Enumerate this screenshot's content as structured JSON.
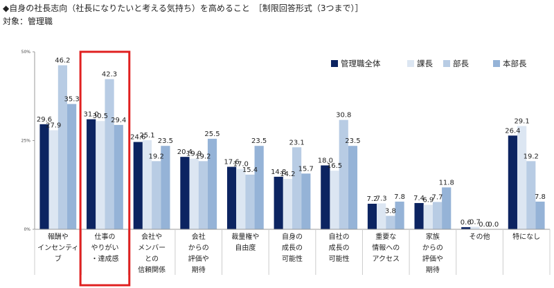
{
  "title": "◆自身の社長志向（社長になりたいと考える気持ち）を高めること　［制限回答形式（3つまで）］",
  "subtitle": "対象：管理職",
  "colors": {
    "series": [
      "#0c2461",
      "#dce6f2",
      "#b8cce4",
      "#95b3d7"
    ],
    "highlight": "#e02020",
    "axis": "#999999",
    "grid": "#cccccc"
  },
  "chart_data": {
    "type": "bar",
    "yunit": "%",
    "ylim": [
      0,
      50
    ],
    "yticks": [
      0,
      25,
      50
    ],
    "ytick_labels": [
      "0%",
      "25%",
      "50%"
    ],
    "legend_position": "top-right",
    "categories": [
      [
        "報酬や",
        "インセンティ",
        "ブ"
      ],
      [
        "仕事の",
        "やりがい",
        "・達成感"
      ],
      [
        "会社や",
        "メンバー",
        "との",
        "信頼関係"
      ],
      [
        "会社",
        "からの",
        "評価や",
        "期待"
      ],
      [
        "裁量権や",
        "自由度"
      ],
      [
        "自身の",
        "成長の",
        "可能性"
      ],
      [
        "自社の",
        "成長の",
        "可能性"
      ],
      [
        "重要な",
        "情報への",
        "アクセス"
      ],
      [
        "家族",
        "からの",
        "評価や",
        "期待"
      ],
      [
        "その他"
      ],
      [
        "特になし"
      ]
    ],
    "highlighted_category_index": 1,
    "series": [
      {
        "name": "管理職全体",
        "values": [
          29.6,
          31.0,
          24.6,
          20.4,
          17.6,
          14.8,
          18.0,
          7.2,
          7.4,
          0.6,
          26.4
        ]
      },
      {
        "name": "課長",
        "values": [
          27.9,
          30.5,
          25.1,
          19.9,
          17.0,
          14.2,
          16.5,
          7.3,
          6.9,
          0.7,
          29.1
        ]
      },
      {
        "name": "部長",
        "values": [
          46.2,
          42.3,
          19.2,
          19.2,
          15.4,
          23.1,
          30.8,
          3.8,
          7.7,
          0.0,
          19.2
        ]
      },
      {
        "name": "本部長",
        "values": [
          35.3,
          29.4,
          23.5,
          25.5,
          23.5,
          15.7,
          23.5,
          7.8,
          11.8,
          0.0,
          7.8
        ]
      }
    ]
  }
}
